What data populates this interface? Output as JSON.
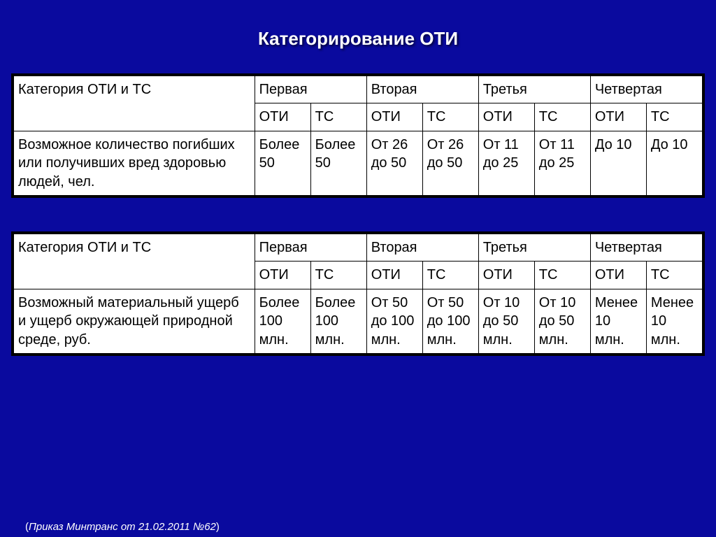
{
  "title": "Категорирование  ОТИ",
  "footnote_open": "(",
  "footnote_text": "Приказ Минтранс от 21.02.2011 №62",
  "footnote_close": ")",
  "colors": {
    "background": "#0a0a9e",
    "table_bg": "#ffffff",
    "text": "#000000",
    "title_text": "#ffffff",
    "border": "#000000"
  },
  "table1": {
    "row_header_label": "Категория ОТИ и ТС",
    "categories": [
      "Первая",
      "Вторая",
      "Третья",
      "Четвертая"
    ],
    "sub_headers": [
      "ОТИ",
      "ТС",
      "ОТИ",
      "ТС",
      "ОТИ",
      "ТС",
      "ОТИ",
      "ТС"
    ],
    "criterion_label": "Возможное количество погибших или получивших вред здоровью людей, чел.",
    "values": [
      "Более 50",
      "Более 50",
      "От 26 до 50",
      "От 26 до 50",
      "От 11 до 25",
      "От 11 до 25",
      "До 10",
      "До 10"
    ]
  },
  "table2": {
    "row_header_label": "Категория ОТИ и ТС",
    "categories": [
      "Первая",
      "Вторая",
      "Третья",
      "Четвертая"
    ],
    "sub_headers": [
      "ОТИ",
      "ТС",
      "ОТИ",
      "ТС",
      "ОТИ",
      "ТС",
      "ОТИ",
      "ТС"
    ],
    "criterion_label": "Возможный материальный ущерб и ущерб окружающей природной среде, руб.",
    "values": [
      "Более 100 млн.",
      "Более 100 млн.",
      "От 50 до 100 млн.",
      "От 50 до 100 млн.",
      "От 10 до 50 млн.",
      "От 10 до 50 млн.",
      "Менее 10 млн.",
      "Менее 10 млн."
    ]
  }
}
